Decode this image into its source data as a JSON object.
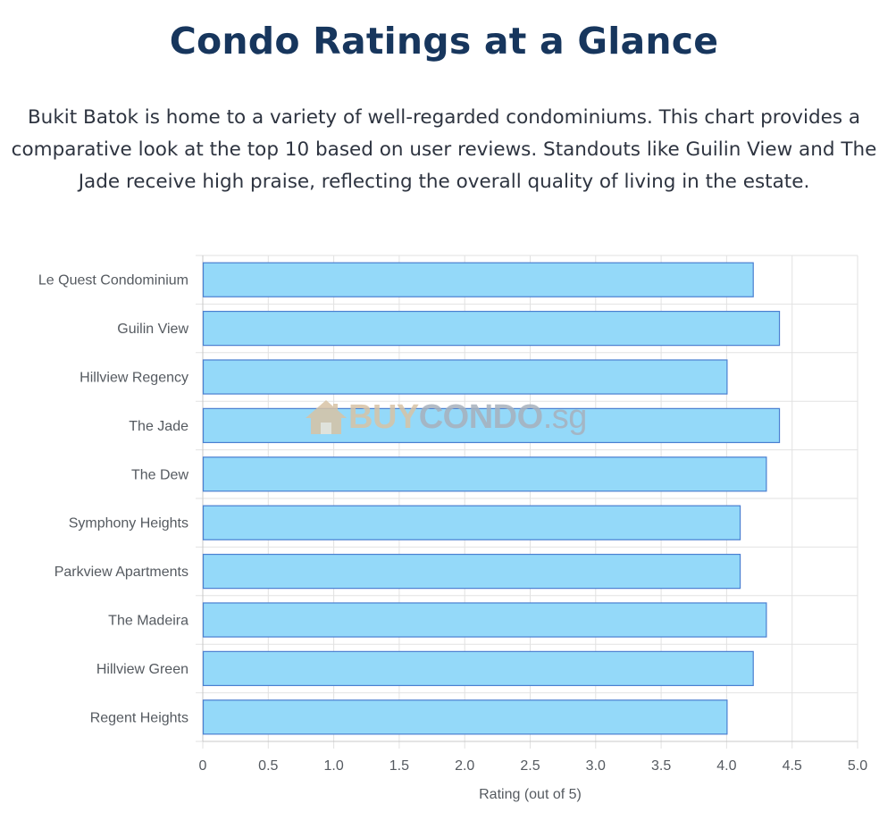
{
  "page": {
    "title": "Condo Ratings at a Glance",
    "intro": "Bukit Batok is home to a variety of well-regarded condominiums. This chart provides a comparative look at the top 10 based on user reviews. Standouts like Guilin View and The Jade receive high praise, reflecting the overall quality of living in the estate."
  },
  "watermark": {
    "part1": "BUY",
    "part2": "CONDO",
    "part3": ".sg",
    "icon": "house-icon"
  },
  "chart_data": {
    "type": "bar",
    "orientation": "horizontal",
    "title": "",
    "xlabel": "Rating (out of 5)",
    "ylabel": "",
    "xlim": [
      0,
      5
    ],
    "x_ticks": [
      "0",
      "0.5",
      "1.0",
      "1.5",
      "2.0",
      "2.5",
      "3.0",
      "3.5",
      "4.0",
      "4.5",
      "5.0"
    ],
    "grid": true,
    "legend": "none",
    "bar_color": "#94d9f9",
    "bar_border_color": "#4a7fd1",
    "categories": [
      "Le Quest Condominium",
      "Guilin View",
      "Hillview Regency",
      "The Jade",
      "The Dew",
      "Symphony Heights",
      "Parkview Apartments",
      "The Madeira",
      "Hillview Green",
      "Regent Heights"
    ],
    "values": [
      4.2,
      4.4,
      4.0,
      4.4,
      4.3,
      4.1,
      4.1,
      4.3,
      4.2,
      4.0
    ]
  }
}
